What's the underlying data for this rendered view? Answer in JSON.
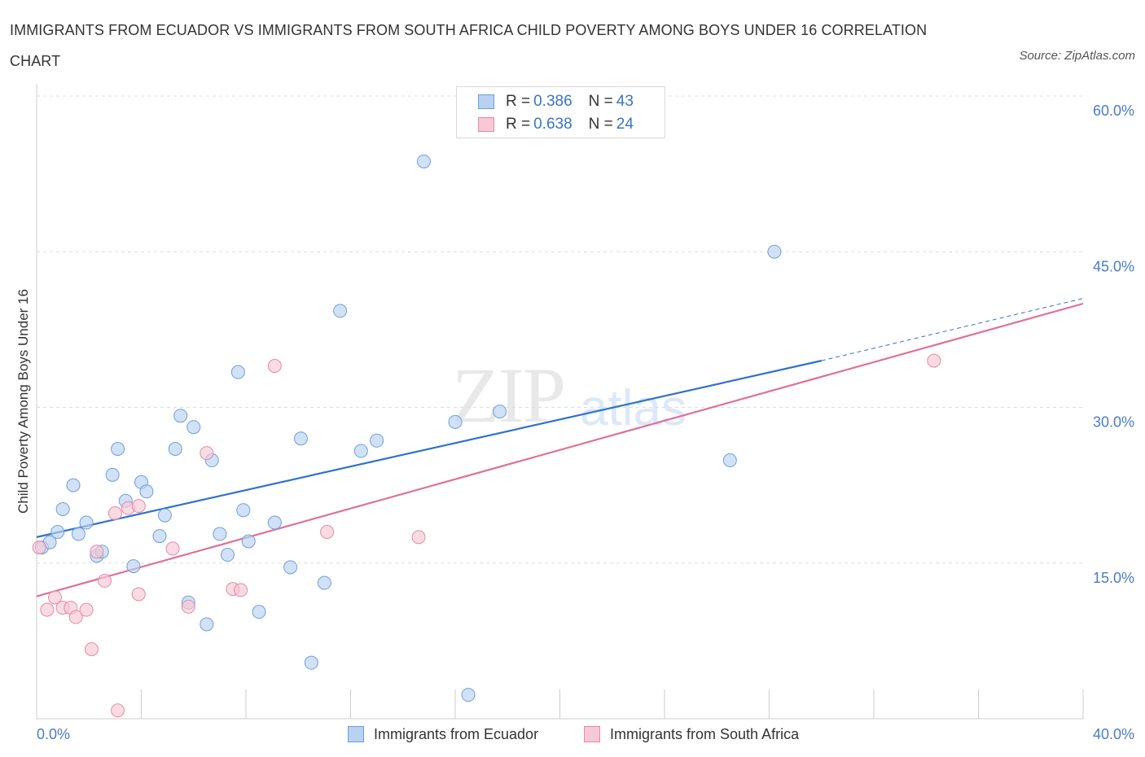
{
  "header": {
    "title": "IMMIGRANTS FROM ECUADOR VS IMMIGRANTS FROM SOUTH AFRICA CHILD POVERTY AMONG BOYS UNDER 16 CORRELATION CHART",
    "source": "Source: ZipAtlas.com"
  },
  "watermark": {
    "zip": "ZIP",
    "atlas": "atlas"
  },
  "legend": {
    "r_label": "R =",
    "n_label": "N =",
    "series": [
      {
        "r": "0.386",
        "n": "43",
        "color": "#b8d2f2",
        "border": "#6f9fd8"
      },
      {
        "r": "0.638",
        "n": "24",
        "color": "#f8c8d6",
        "border": "#e48aa6"
      }
    ]
  },
  "bottom_legend": [
    "Immigrants from Ecuador",
    "Immigrants from South Africa"
  ],
  "chart_data": {
    "type": "scatter",
    "title": "IMMIGRANTS FROM ECUADOR VS IMMIGRANTS FROM SOUTH AFRICA CHILD POVERTY AMONG BOYS UNDER 16 CORRELATION CHART",
    "xlabel": "",
    "ylabel": "Child Poverty Among Boys Under 16",
    "xlim": [
      0,
      40
    ],
    "ylim": [
      0,
      60
    ],
    "x_tick_labels": [
      "0.0%",
      "40.0%"
    ],
    "y_ticks": [
      15,
      30,
      45,
      60
    ],
    "y_tick_labels": [
      "15.0%",
      "30.0%",
      "45.0%",
      "60.0%"
    ],
    "grid": true,
    "legend_position": "top-center",
    "series": [
      {
        "name": "Immigrants from Ecuador",
        "color": "#6f9fd8",
        "fill": "#b8d2f2",
        "line_color": "#2f72cc",
        "trend": {
          "x0": 0,
          "y0": 17.5,
          "x1": 30,
          "y1": 34.5,
          "dashed_to_x": 40,
          "dashed_to_y": 40.5
        },
        "points": [
          [
            0.2,
            16.5
          ],
          [
            0.5,
            17.0
          ],
          [
            0.8,
            18.0
          ],
          [
            1.0,
            20.2
          ],
          [
            1.4,
            22.5
          ],
          [
            1.6,
            17.8
          ],
          [
            1.9,
            18.9
          ],
          [
            2.3,
            15.7
          ],
          [
            2.5,
            16.1
          ],
          [
            2.9,
            23.5
          ],
          [
            3.1,
            26.0
          ],
          [
            3.4,
            21.0
          ],
          [
            3.7,
            14.7
          ],
          [
            4.0,
            22.8
          ],
          [
            4.2,
            21.9
          ],
          [
            4.7,
            17.6
          ],
          [
            4.9,
            19.6
          ],
          [
            5.3,
            26.0
          ],
          [
            5.5,
            29.2
          ],
          [
            5.8,
            11.2
          ],
          [
            6.0,
            28.1
          ],
          [
            6.5,
            9.1
          ],
          [
            6.7,
            24.9
          ],
          [
            7.0,
            17.8
          ],
          [
            7.3,
            15.8
          ],
          [
            7.7,
            33.4
          ],
          [
            7.9,
            20.1
          ],
          [
            8.1,
            17.1
          ],
          [
            8.5,
            10.3
          ],
          [
            9.1,
            18.9
          ],
          [
            9.7,
            14.6
          ],
          [
            10.1,
            27.0
          ],
          [
            10.5,
            5.4
          ],
          [
            11.0,
            13.1
          ],
          [
            11.6,
            39.3
          ],
          [
            12.4,
            25.8
          ],
          [
            13.0,
            26.8
          ],
          [
            14.8,
            53.7
          ],
          [
            16.0,
            28.6
          ],
          [
            16.5,
            2.3
          ],
          [
            17.7,
            29.6
          ],
          [
            26.5,
            24.9
          ],
          [
            28.2,
            45.0
          ]
        ]
      },
      {
        "name": "Immigrants from South Africa",
        "color": "#e48aa6",
        "fill": "#f8c8d6",
        "line_color": "#e0709a",
        "trend": {
          "x0": 0,
          "y0": 11.8,
          "x1": 40,
          "y1": 40.0
        },
        "points": [
          [
            0.1,
            16.5
          ],
          [
            0.4,
            10.5
          ],
          [
            0.7,
            11.7
          ],
          [
            1.0,
            10.7
          ],
          [
            1.3,
            10.7
          ],
          [
            1.5,
            9.8
          ],
          [
            1.9,
            10.5
          ],
          [
            2.1,
            6.7
          ],
          [
            2.3,
            16.1
          ],
          [
            2.6,
            13.3
          ],
          [
            3.0,
            19.8
          ],
          [
            3.1,
            0.8
          ],
          [
            3.5,
            20.3
          ],
          [
            3.9,
            20.5
          ],
          [
            3.9,
            12.0
          ],
          [
            5.2,
            16.4
          ],
          [
            5.8,
            10.8
          ],
          [
            6.5,
            25.6
          ],
          [
            7.5,
            12.5
          ],
          [
            7.8,
            12.4
          ],
          [
            9.1,
            34.0
          ],
          [
            11.1,
            18.0
          ],
          [
            14.6,
            17.5
          ],
          [
            34.3,
            34.5
          ]
        ]
      }
    ]
  }
}
